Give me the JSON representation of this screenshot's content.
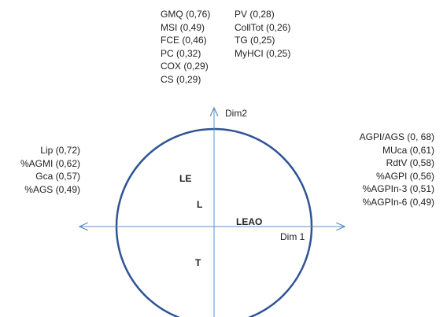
{
  "axes": {
    "dim1_label": "Dim 1",
    "dim2_label": "Dim2"
  },
  "groups": {
    "le": "LE",
    "l": "L",
    "leao": "LEAO",
    "t": "T"
  },
  "top_left_variables": [
    "GMQ (0,76)",
    "MSI (0,49)",
    "FCE (0,46)",
    "PC (0,32)",
    "COX (0,29)",
    "CS (0,29)"
  ],
  "top_right_variables": [
    "PV (0,28)",
    "CollTot (0,26)",
    "TG (0,25)",
    "MyHCI (0,25)"
  ],
  "left_variables": [
    "Lip (0,72)",
    "%AGMI (0,62)",
    "Gca (0,57)",
    "%AGS (0,49)"
  ],
  "right_variables": [
    "AGPI/AGS (0, 68)",
    "MUca (0,61)",
    "RdtV (0,58)",
    "%AGPI (0,56)",
    "%AGPIn-3 (0,51)",
    "%AGPIn-6 (0,49)"
  ],
  "colors": {
    "circle": "#2f5496",
    "axes": "#5b8fc9",
    "text": "#222222"
  }
}
